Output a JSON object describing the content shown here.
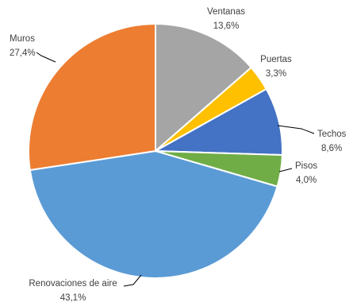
{
  "chart_data": {
    "type": "pie",
    "title": "",
    "slices": [
      {
        "name": "Ventanas",
        "value": 13.6,
        "label": "13,6%",
        "color": "#A5A5A5"
      },
      {
        "name": "Puertas",
        "value": 3.3,
        "label": "3,3%",
        "color": "#FFC000"
      },
      {
        "name": "Techos",
        "value": 8.6,
        "label": "8,6%",
        "color": "#4472C4"
      },
      {
        "name": "Pisos",
        "value": 4.0,
        "label": "4,0%",
        "color": "#70AD47"
      },
      {
        "name": "Renovaciones de aire",
        "value": 43.1,
        "label": "43,1%",
        "color": "#5B9BD5"
      },
      {
        "name": "Muros",
        "value": 27.4,
        "label": "27,4%",
        "color": "#ED7D31"
      }
    ],
    "start": "top, clockwise",
    "legend": "none (labels beside slices with leader lines)"
  }
}
